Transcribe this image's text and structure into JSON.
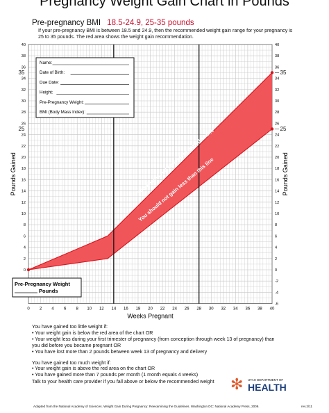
{
  "header": {
    "title": "Pregnancy Weight Gain Chart in Pounds",
    "subtitle_label": "Pre-pregnancy BMI",
    "subtitle_range": "18.5-24.9, 25-35 pounds",
    "intro_text": "If your pre-pregnancy BMI is between 18.5 and 24.9, then the recommended weight gain range for your pregnancy is 25 to 35 pounds. The red area shows the weight gain recommendation."
  },
  "form": {
    "fields": [
      "Name:",
      "Date of Birth:",
      "Due Date:",
      "Height:",
      "Pre-Pregnancy Weight:",
      "BMI (Body Mass Index):"
    ],
    "pre_weight_label": "Pre-Pregnancy Weight",
    "pounds_label": "Pounds"
  },
  "chart_data": {
    "type": "area",
    "xlabel": "Weeks Pregnant",
    "ylabel": "Pounds Gained",
    "xlim": [
      0,
      40
    ],
    "ylim": [
      -6,
      40
    ],
    "x_ticks": [
      0,
      2,
      4,
      6,
      8,
      10,
      12,
      14,
      16,
      18,
      20,
      22,
      24,
      26,
      28,
      30,
      32,
      34,
      36,
      38,
      40
    ],
    "y_ticks_left": [
      0,
      2,
      4,
      6,
      8,
      10,
      12,
      14,
      16,
      18,
      20,
      22,
      24,
      26,
      28,
      30,
      32,
      34,
      36,
      38,
      40
    ],
    "y_ticks_right": [
      -6,
      -4,
      -2,
      0,
      2,
      4,
      6,
      8,
      10,
      12,
      14,
      16,
      18,
      20,
      22,
      24,
      26,
      28,
      30,
      32,
      34,
      36,
      38,
      40
    ],
    "grid": true,
    "series": [
      {
        "name": "upper",
        "x": [
          0,
          13,
          40
        ],
        "y": [
          0,
          6,
          35
        ]
      },
      {
        "name": "lower",
        "x": [
          0,
          13,
          40
        ],
        "y": [
          0,
          2,
          25
        ]
      }
    ],
    "vertical_markers": [
      14,
      28
    ],
    "end_labels": [
      {
        "value": 35,
        "label": "35"
      },
      {
        "value": 25,
        "label": "25"
      }
    ],
    "annotations": [
      "You should not gain more than this line",
      "You should not gain less than this line"
    ],
    "colors": {
      "fill": "#f0555a",
      "line": "#d8141c",
      "grid": "#c6c6c6"
    }
  },
  "notes": {
    "too_little_title": "You have gained too little weight if:",
    "too_little_items": [
      "• Your weight gain is below the red area of the chart OR",
      "• Your weight less during your first trimester of pregnancy (from conception through week 13 of pregnancy) than you did before you became pregnant OR",
      "• You have lost more than 2 pounds between week 13 of pregnancy and delivery"
    ],
    "too_much_title": "You have gained too much weight if:",
    "too_much_items": [
      "• Your weight gain is above the red area on the chart OR",
      "• You have gained more than 7 pounds per month (1 month equals 4 weeks)"
    ],
    "advice": "Talk to your health care provider if you fall above or below the recommended weight"
  },
  "logo": {
    "dept": "UTAH DEPARTMENT OF",
    "name": "HEALTH"
  },
  "footer": {
    "citation": "Adapted from the National Academy of Sciences. Weight Gain During Pregnancy: Reexamining the Guidelines. Washington DC: National Academy Press, 2009.",
    "revision": "rev.2/11"
  }
}
